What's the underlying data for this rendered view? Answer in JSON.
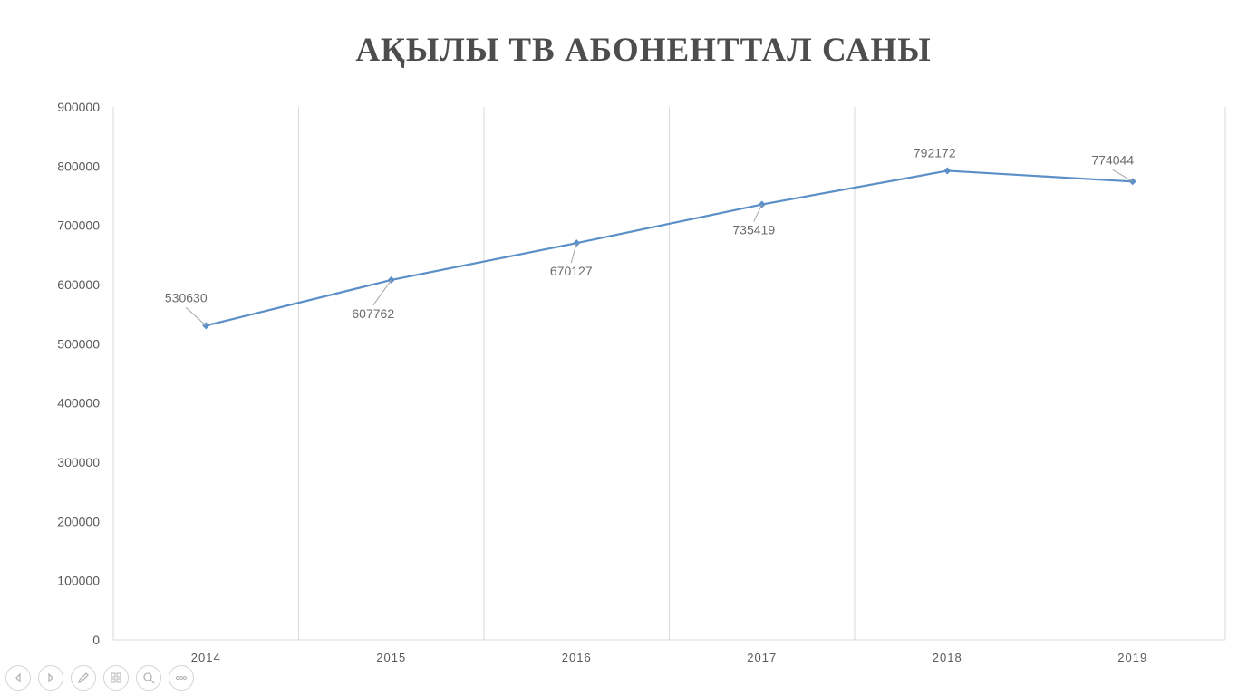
{
  "chart_data": {
    "type": "line",
    "title": "АҚЫЛЫ ТВ АБОНЕНТТАЛ САНЫ",
    "categories": [
      "2014",
      "2015",
      "2016",
      "2017",
      "2018",
      "2019"
    ],
    "series": [
      {
        "values": [
          530630,
          607762,
          670127,
          735419,
          792172,
          774044
        ],
        "color": "#5b8fc7"
      }
    ],
    "data_labels": [
      "530630",
      "607762",
      "670127",
      "735419",
      "792172",
      "774044"
    ],
    "y_ticks": [
      "0",
      "100000",
      "200000",
      "300000",
      "400000",
      "500000",
      "600000",
      "700000",
      "800000",
      "900000"
    ],
    "ylim": [
      0,
      900000
    ],
    "xlabel": "",
    "ylabel": "",
    "grid": "vertical",
    "legend": "none"
  },
  "colors": {
    "line": "#5b8fc7",
    "gridline": "#d9d9d9",
    "title": "#4d4d4d"
  },
  "toolbar": {
    "icons": [
      "previous-slide-icon",
      "next-slide-icon",
      "pen-icon",
      "slides-grid-icon",
      "zoom-icon",
      "more-options-icon"
    ]
  }
}
